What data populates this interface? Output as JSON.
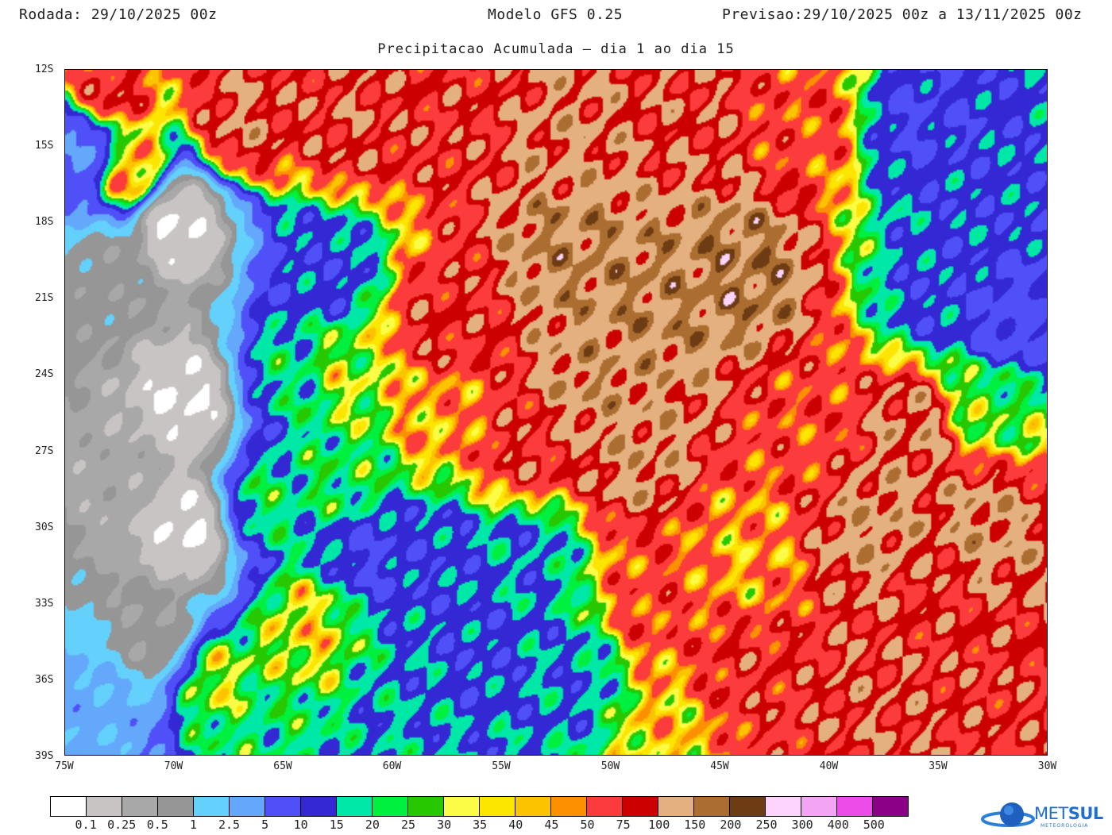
{
  "header": {
    "rodada_label": "Rodada:",
    "rodada_value": "29/10/2025 00z",
    "model": "Modelo GFS 0.25",
    "previsao_label": "Previsao:",
    "previsao_value": "29/10/2025 00z a 13/11/2025 00z"
  },
  "title": "Precipitacao Acumulada — dia 1 ao dia 15",
  "map": {
    "lat_ticks": [
      "12S",
      "15S",
      "18S",
      "21S",
      "24S",
      "27S",
      "30S",
      "33S",
      "36S",
      "39S"
    ],
    "lon_ticks": [
      "75W",
      "70W",
      "65W",
      "60W",
      "55W",
      "50W",
      "45W",
      "40W",
      "35W",
      "30W"
    ],
    "lat_range": [
      -12,
      -39
    ],
    "lon_range": [
      -75,
      -30
    ]
  },
  "colorbar": {
    "colors": [
      "#ffffff",
      "#c8c4c4",
      "#a8a8a8",
      "#969696",
      "#64d0fc",
      "#64a8fc",
      "#5050f8",
      "#3428d4",
      "#00e8a8",
      "#00f040",
      "#28c800",
      "#fcfc46",
      "#fce600",
      "#fcc400",
      "#fc9000",
      "#fc3c3c",
      "#cc0000",
      "#e4b080",
      "#ac6e30",
      "#6e3c14",
      "#fcd4fc",
      "#f4a4f4",
      "#ec4ce8",
      "#8c0088"
    ],
    "labels": [
      "0.1",
      "0.25",
      "0.5",
      "1",
      "2.5",
      "5",
      "10",
      "15",
      "20",
      "25",
      "30",
      "35",
      "40",
      "45",
      "50",
      "75",
      "100",
      "150",
      "200",
      "250",
      "300",
      "400",
      "500"
    ]
  },
  "logo": {
    "text_a": "MET",
    "text_b": "SUL",
    "subtitle": "METEOROLOGIA"
  }
}
